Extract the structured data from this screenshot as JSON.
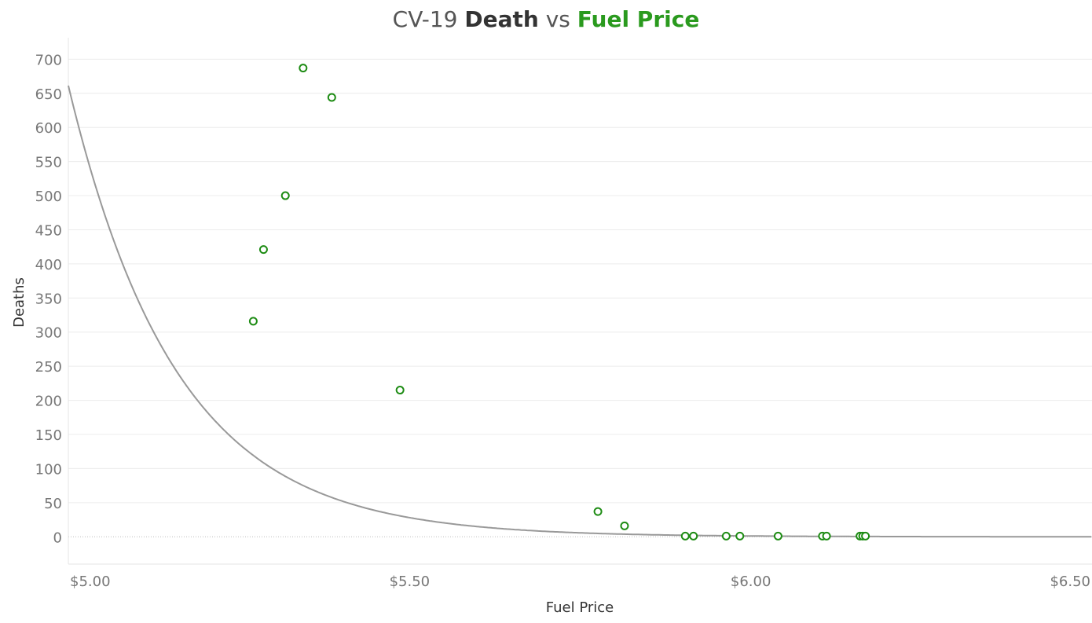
{
  "chart_data": {
    "type": "scatter",
    "title": {
      "part1": "CV-19 ",
      "part2": "Death",
      "part3": " vs ",
      "part4": "Fuel Price"
    },
    "title_colors": {
      "part1": "#555555",
      "part2": "#333333",
      "part3": "#555555",
      "part4": "#2a9a1e"
    },
    "xlabel": "Fuel Price",
    "ylabel": "Deaths",
    "xlim": [
      5.0,
      6.5
    ],
    "ylim": [
      -40,
      720
    ],
    "x_ticks": [
      5.0,
      5.5,
      6.0,
      6.5
    ],
    "x_tick_labels": [
      "$5.00",
      "$5.50",
      "$6.00",
      "$6.50"
    ],
    "y_ticks": [
      0,
      50,
      100,
      150,
      200,
      250,
      300,
      350,
      400,
      450,
      500,
      550,
      600,
      650,
      700
    ],
    "y_tick_labels": [
      "0",
      "50",
      "100",
      "150",
      "200",
      "250",
      "300",
      "350",
      "400",
      "450",
      "500",
      "550",
      "600",
      "650",
      "700"
    ],
    "grid": true,
    "point_color": "#1e8c14",
    "trend_color": "#999999",
    "points": [
      {
        "x": 5.271,
        "y": 316
      },
      {
        "x": 5.286,
        "y": 421
      },
      {
        "x": 5.318,
        "y": 500
      },
      {
        "x": 5.344,
        "y": 687
      },
      {
        "x": 5.386,
        "y": 644
      },
      {
        "x": 5.486,
        "y": 215
      },
      {
        "x": 5.776,
        "y": 37
      },
      {
        "x": 5.815,
        "y": 16
      },
      {
        "x": 5.904,
        "y": 1
      },
      {
        "x": 5.916,
        "y": 1
      },
      {
        "x": 5.964,
        "y": 1
      },
      {
        "x": 5.984,
        "y": 1
      },
      {
        "x": 6.04,
        "y": 1
      },
      {
        "x": 6.105,
        "y": 1
      },
      {
        "x": 6.111,
        "y": 1
      },
      {
        "x": 6.16,
        "y": 1
      },
      {
        "x": 6.164,
        "y": 1
      },
      {
        "x": 6.168,
        "y": 1
      }
    ],
    "trend": {
      "type": "exponential",
      "a": 3.5e+16,
      "b": 6.32
    }
  }
}
